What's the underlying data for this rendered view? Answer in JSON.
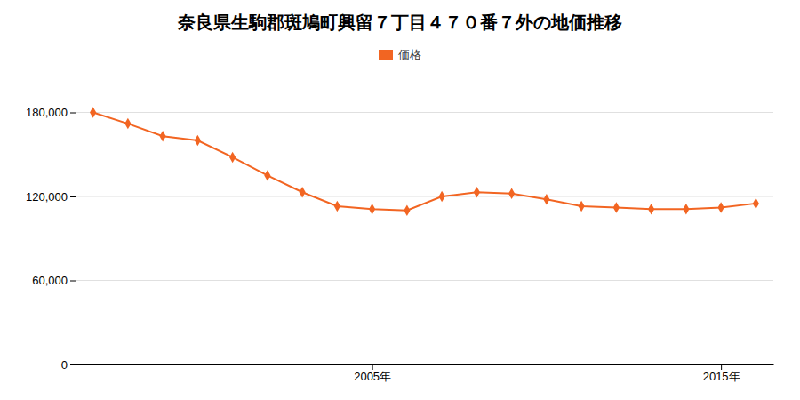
{
  "chart_data": {
    "type": "line",
    "title": "奈良県生駒郡斑鳩町興留７丁目４７０番７外の地価推移",
    "x": [
      1997,
      1998,
      1999,
      2000,
      2001,
      2002,
      2003,
      2004,
      2005,
      2006,
      2007,
      2008,
      2009,
      2010,
      2011,
      2012,
      2013,
      2014,
      2015,
      2016
    ],
    "series": [
      {
        "name": "価格",
        "color": "#f26522",
        "marker": "diamond",
        "values": [
          180000,
          172000,
          163000,
          160000,
          148000,
          135000,
          123000,
          113000,
          111000,
          110000,
          120000,
          123000,
          122000,
          118000,
          113000,
          112000,
          111000,
          111000,
          112000,
          115000
        ]
      }
    ],
    "xlim": [
      1996.5,
      2016.5
    ],
    "xticks": [
      {
        "value": 2005,
        "label": "2005年"
      },
      {
        "value": 2015,
        "label": "2015年"
      }
    ],
    "ylim": [
      0,
      200000
    ],
    "yticks": [
      0,
      {
        "value": 60000,
        "label": "60,000"
      },
      {
        "value": 120000,
        "label": "120,000"
      },
      {
        "value": 180000,
        "label": "180,000"
      }
    ],
    "grid": true,
    "legend": "top"
  }
}
